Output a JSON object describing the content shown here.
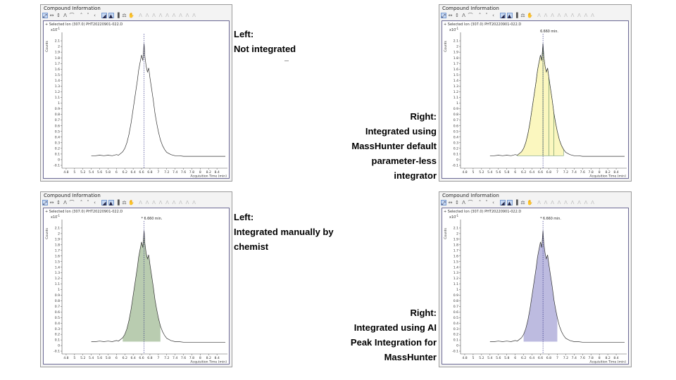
{
  "panels": [
    {
      "id": "top-left",
      "window_title": "Compound Information",
      "trace_label": "+ Selected Ion (307.0) PHT20220901-022.D",
      "scale_label": "x10",
      "scale_exp": "-1",
      "y_axis_label": "Counts",
      "x_axis_label": "Acquisition Time (min)",
      "integration": "none",
      "peak_label": ""
    },
    {
      "id": "top-right",
      "window_title": "Compound Information",
      "trace_label": "+ Selected Ion (307.0) PHT20220901-022.D",
      "scale_label": "x10",
      "scale_exp": "-1",
      "y_axis_label": "Counts",
      "x_axis_label": "Acquisition Time (min)",
      "integration": "default",
      "peak_label": "6.660 min."
    },
    {
      "id": "bottom-left",
      "window_title": "Compound Information",
      "trace_label": "+ Selected Ion (307.0) PHT20220901-022.D",
      "scale_label": "x10",
      "scale_exp": "-1",
      "y_axis_label": "Counts",
      "x_axis_label": "Acquisition Time (min)",
      "integration": "manual",
      "peak_label": "* 6.660 min."
    },
    {
      "id": "bottom-right",
      "window_title": "Compound Information",
      "trace_label": "+ Selected Ion (307.0) PHT20220901-022.D",
      "scale_label": "x10",
      "scale_exp": "-1",
      "y_axis_label": "Counts",
      "x_axis_label": "Acquisition Time (min)",
      "integration": "ai",
      "peak_label": "* 6.660 min."
    }
  ],
  "captions": {
    "top_left": [
      "Left:",
      "Not integrated"
    ],
    "top_right": [
      "Right:",
      "Integrated using",
      "MassHunter default",
      "parameter-less",
      "integrator"
    ],
    "bottom_left": [
      "Left:",
      "Integrated manually by",
      "chemist"
    ],
    "bottom_right": [
      "Right:",
      "Integrated using AI",
      "Peak Integration for",
      "MassHunter"
    ]
  },
  "colors": {
    "trace": "#333333",
    "plot_border": "#6c6a95",
    "marker": "#1a1a7a",
    "fill_default": "#fbf7bf",
    "fill_default_stroke": "#5a8a5a",
    "fill_manual": "#b9ccb0",
    "fill_ai": "#bdbbe0"
  },
  "toolbar_icons": [
    "zoom-fit-icon",
    "horizontal-arrows-icon",
    "vertical-arrows-icon",
    "peak-icon",
    "baseline-icon",
    "separator",
    "up-caret-icon",
    "down-caret-icon",
    "left-caret-icon",
    "separator",
    "overlay-icon",
    "area-icon",
    "bar-icon",
    "scale-icon",
    "hand-icon",
    "separator",
    "peak-a-icon",
    "peak-b-icon",
    "peak-c-icon",
    "peak-d-icon",
    "peak-e-icon",
    "peak-f-icon",
    "peak-g-icon",
    "peak-h-icon",
    "peak-i-icon"
  ],
  "chart_data": {
    "type": "line",
    "title": "",
    "xlabel": "Acquisition Time (min)",
    "ylabel": "Counts",
    "y_scale_label": "x10^-1",
    "xlim": [
      4.7,
      8.65
    ],
    "ylim": [
      -0.15,
      2.2
    ],
    "x_ticks": [
      4.8,
      5,
      5.2,
      5.4,
      5.6,
      5.8,
      6,
      6.2,
      6.4,
      6.6,
      6.8,
      7,
      7.2,
      7.4,
      7.6,
      7.8,
      8,
      8.2,
      8.4
    ],
    "x_tick_labels": [
      "4.8",
      "5",
      "5.2",
      "5.4",
      "5.6",
      "5.8",
      "6",
      "6.2",
      "6.4",
      "6.6",
      "6.8",
      "7",
      "7.2",
      "7.4",
      "7.6",
      "7.8",
      "8",
      "8.2",
      "8.4"
    ],
    "y_ticks": [
      -0.1,
      0,
      0.1,
      0.2,
      0.3,
      0.4,
      0.5,
      0.6,
      0.7,
      0.8,
      0.9,
      1,
      1.1,
      1.2,
      1.3,
      1.4,
      1.5,
      1.6,
      1.7,
      1.8,
      1.9,
      2,
      2.1
    ],
    "y_tick_labels": [
      "-0.1",
      "0",
      "0.1",
      "0.2",
      "0.3",
      "0.4",
      "0.5",
      "0.6",
      "0.7",
      "0.8",
      "0.9",
      "1",
      "1.1",
      "1.2",
      "1.3",
      "1.4",
      "1.5",
      "1.6",
      "1.7",
      "1.8",
      "1.9",
      "2",
      "2.1"
    ],
    "grid": false,
    "retention_time": 6.66,
    "series": [
      {
        "x": [
          5.4,
          5.5,
          5.6,
          5.7,
          5.8,
          5.9,
          6.0,
          6.05,
          6.1,
          6.15,
          6.2,
          6.25,
          6.3,
          6.35,
          6.4,
          6.45,
          6.5,
          6.53,
          6.56,
          6.6,
          6.63,
          6.66,
          6.68,
          6.71,
          6.74,
          6.77,
          6.8,
          6.84,
          6.88,
          6.92,
          6.96,
          7.0,
          7.05,
          7.1,
          7.15,
          7.2,
          7.3,
          7.4,
          7.5,
          7.6,
          7.8,
          8.0,
          8.2,
          8.4,
          8.6
        ],
        "y": [
          0.07,
          0.07,
          0.08,
          0.07,
          0.08,
          0.07,
          0.09,
          0.08,
          0.11,
          0.14,
          0.2,
          0.3,
          0.45,
          0.65,
          0.9,
          1.15,
          1.4,
          1.58,
          1.7,
          1.85,
          1.75,
          2.05,
          1.82,
          1.65,
          1.55,
          1.62,
          1.45,
          1.25,
          1.05,
          0.82,
          0.65,
          0.5,
          0.35,
          0.25,
          0.18,
          0.13,
          0.09,
          0.07,
          0.07,
          0.06,
          0.06,
          0.06,
          0.06,
          0.06,
          0.06
        ]
      }
    ],
    "integration_ranges": {
      "default": [
        [
          6.05,
          6.66
        ],
        [
          6.66,
          6.8
        ],
        [
          6.8,
          6.92
        ],
        [
          6.92,
          7.15
        ]
      ],
      "manual": [
        [
          6.15,
          7.05
        ]
      ],
      "ai": [
        [
          6.2,
          7.0
        ]
      ]
    }
  }
}
